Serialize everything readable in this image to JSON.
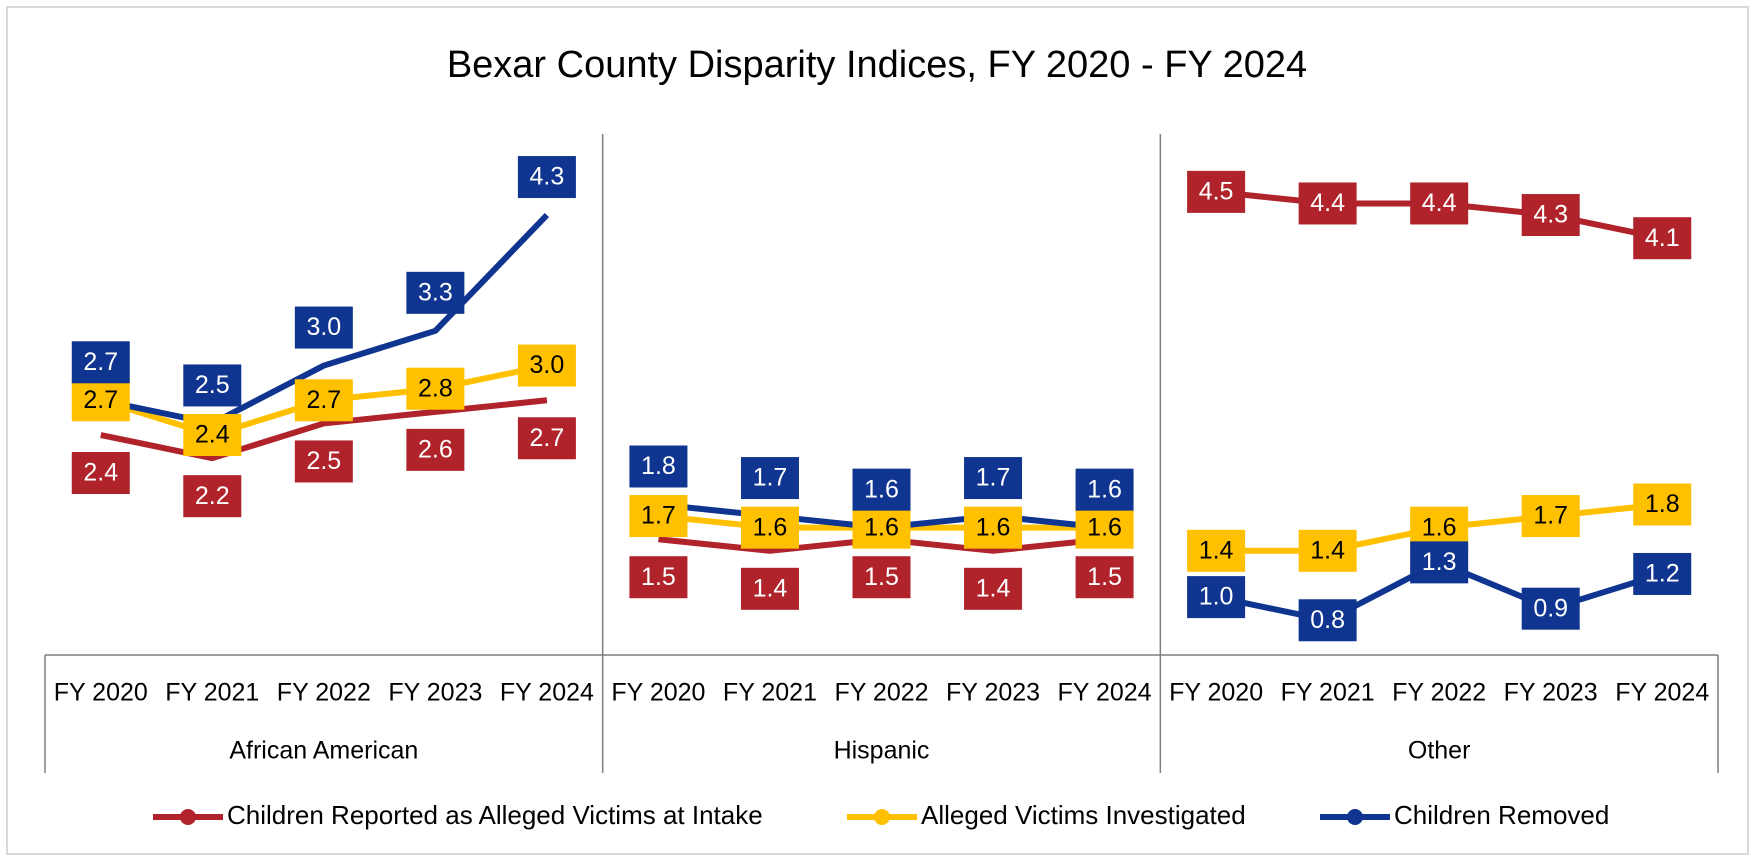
{
  "chart_data": {
    "type": "line",
    "title": "Bexar County Disparity Indices, FY 2020 - FY 2024",
    "groups": [
      {
        "name": "African American",
        "categories": [
          "FY 2020",
          "FY 2021",
          "FY 2022",
          "FY 2023",
          "FY 2024"
        ]
      },
      {
        "name": "Hispanic",
        "categories": [
          "FY 2020",
          "FY 2021",
          "FY 2022",
          "FY 2023",
          "FY 2024"
        ]
      },
      {
        "name": "Other",
        "categories": [
          "FY 2020",
          "FY 2021",
          "FY 2022",
          "FY 2023",
          "FY 2024"
        ]
      }
    ],
    "ylim": [
      0.5,
      5
    ],
    "series": [
      {
        "name": "Children Reported as Alleged Victims at Intake",
        "color": "#b0232a",
        "values": [
          2.4,
          2.2,
          2.5,
          2.6,
          2.7,
          1.5,
          1.4,
          1.5,
          1.4,
          1.5,
          4.5,
          4.4,
          4.4,
          4.3,
          4.1
        ],
        "value_labels": [
          "2.4",
          "2.2",
          "2.5",
          "2.6",
          "2.7",
          "1.5",
          "1.4",
          "1.5",
          "1.4",
          "1.5",
          "4.5",
          "4.4",
          "4.4",
          "4.3",
          "4.1"
        ]
      },
      {
        "name": "Alleged Victims Investigated",
        "color": "#ffc000",
        "values": [
          2.7,
          2.4,
          2.7,
          2.8,
          3.0,
          1.7,
          1.6,
          1.6,
          1.6,
          1.6,
          1.4,
          1.4,
          1.6,
          1.7,
          1.8
        ],
        "value_labels": [
          "2.7",
          "2.4",
          "2.7",
          "2.8",
          "3.0",
          "1.7",
          "1.6",
          "1.6",
          "1.6",
          "1.6",
          "1.4",
          "1.4",
          "1.6",
          "1.7",
          "1.8"
        ]
      },
      {
        "name": "Children Removed",
        "color": "#0f3590",
        "values": [
          2.7,
          2.5,
          3.0,
          3.3,
          4.3,
          1.8,
          1.7,
          1.6,
          1.7,
          1.6,
          1.0,
          0.8,
          1.3,
          0.9,
          1.2
        ],
        "value_labels": [
          "2.7",
          "2.5",
          "3.0",
          "3.3",
          "4.3",
          "1.8",
          "1.7",
          "1.6",
          "1.7",
          "1.6",
          "1.0",
          "0.8",
          "1.3",
          "0.9",
          "1.2"
        ]
      }
    ]
  }
}
